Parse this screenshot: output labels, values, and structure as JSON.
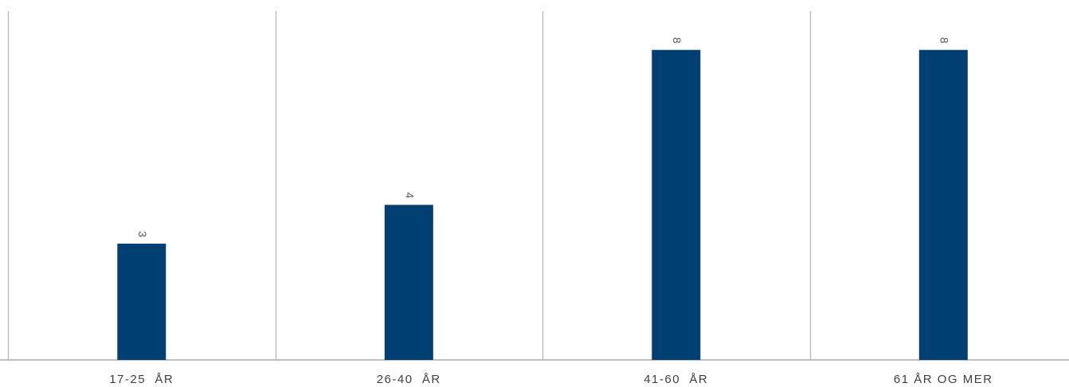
{
  "chart_data": {
    "type": "bar",
    "categories": [
      "17-25  ÅR",
      "26-40  ÅR",
      "41-60  ÅR",
      "61 ÅR OG MER"
    ],
    "values": [
      3,
      4,
      8,
      8
    ],
    "data_labels": [
      "3",
      "4",
      "8",
      "8"
    ],
    "ylim": [
      0,
      9
    ],
    "grid": true,
    "data_label_orientation": "rotated",
    "bar_color": "#003F72",
    "grid_color": "#BFBFBF",
    "label_color": "#404040"
  }
}
